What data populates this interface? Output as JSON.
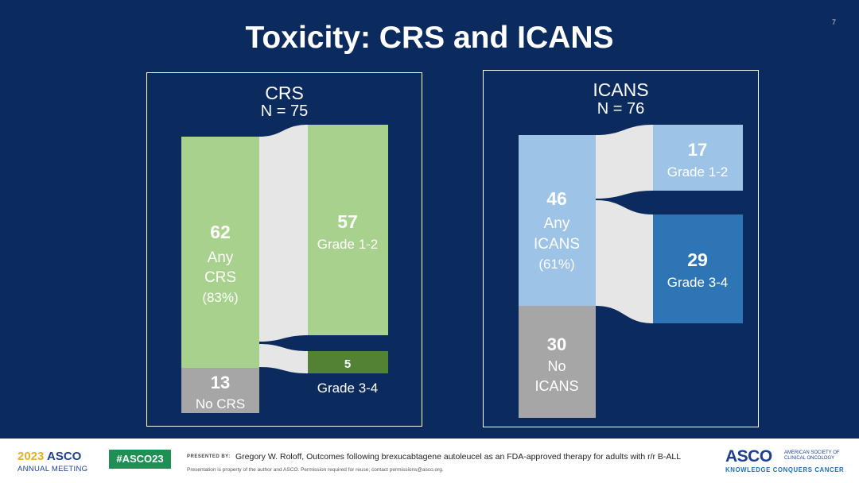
{
  "slide": {
    "title": "Toxicity: CRS and ICANS",
    "number": "7"
  },
  "chart_data": [
    {
      "type": "sankey",
      "title": "CRS",
      "subtitle": "N = 75",
      "source": {
        "value": "62",
        "labels": [
          "Any",
          "CRS",
          "(83%)"
        ],
        "color": "#a9d18e"
      },
      "remainder": {
        "value": "13",
        "label": "No CRS",
        "color": "#a6a6a6"
      },
      "targets": [
        {
          "value": "57",
          "label": "Grade 1-2",
          "color": "#a9d18e"
        },
        {
          "value": "5",
          "label": "Grade 3-4",
          "color": "#548235"
        }
      ]
    },
    {
      "type": "sankey",
      "title": "ICANS",
      "subtitle": "N = 76",
      "source": {
        "value": "46",
        "labels": [
          "Any",
          "ICANS",
          "(61%)"
        ],
        "color": "#9dc3e6"
      },
      "remainder": {
        "value": "30",
        "labels": [
          "No",
          "ICANS"
        ],
        "color": "#a6a6a6"
      },
      "targets": [
        {
          "value": "17",
          "label": "Grade 1-2",
          "color": "#9dc3e6"
        },
        {
          "value": "29",
          "label": "Grade 3-4",
          "color": "#2e75b6"
        }
      ]
    }
  ],
  "colors": {
    "background": "#0b2a5e",
    "flow": "#e6e6e6"
  },
  "footer": {
    "year": "2023",
    "asco": "ASCO",
    "meeting": "ANNUAL MEETING",
    "hashtag": "#ASCO23",
    "presented_by": "PRESENTED BY:",
    "presenter": "Gregory W. Roloff, Outcomes following brexucabtagene autoleucel as an FDA-approved therapy for adults with r/r B-ALL",
    "notice": "Presentation is property of the author and ASCO. Permission required for reuse; contact permissions@asco.org.",
    "logo": "ASCO",
    "logo_sub": "AMERICAN SOCIETY OF CLINICAL ONCOLOGY",
    "tagline": "KNOWLEDGE CONQUERS CANCER"
  }
}
